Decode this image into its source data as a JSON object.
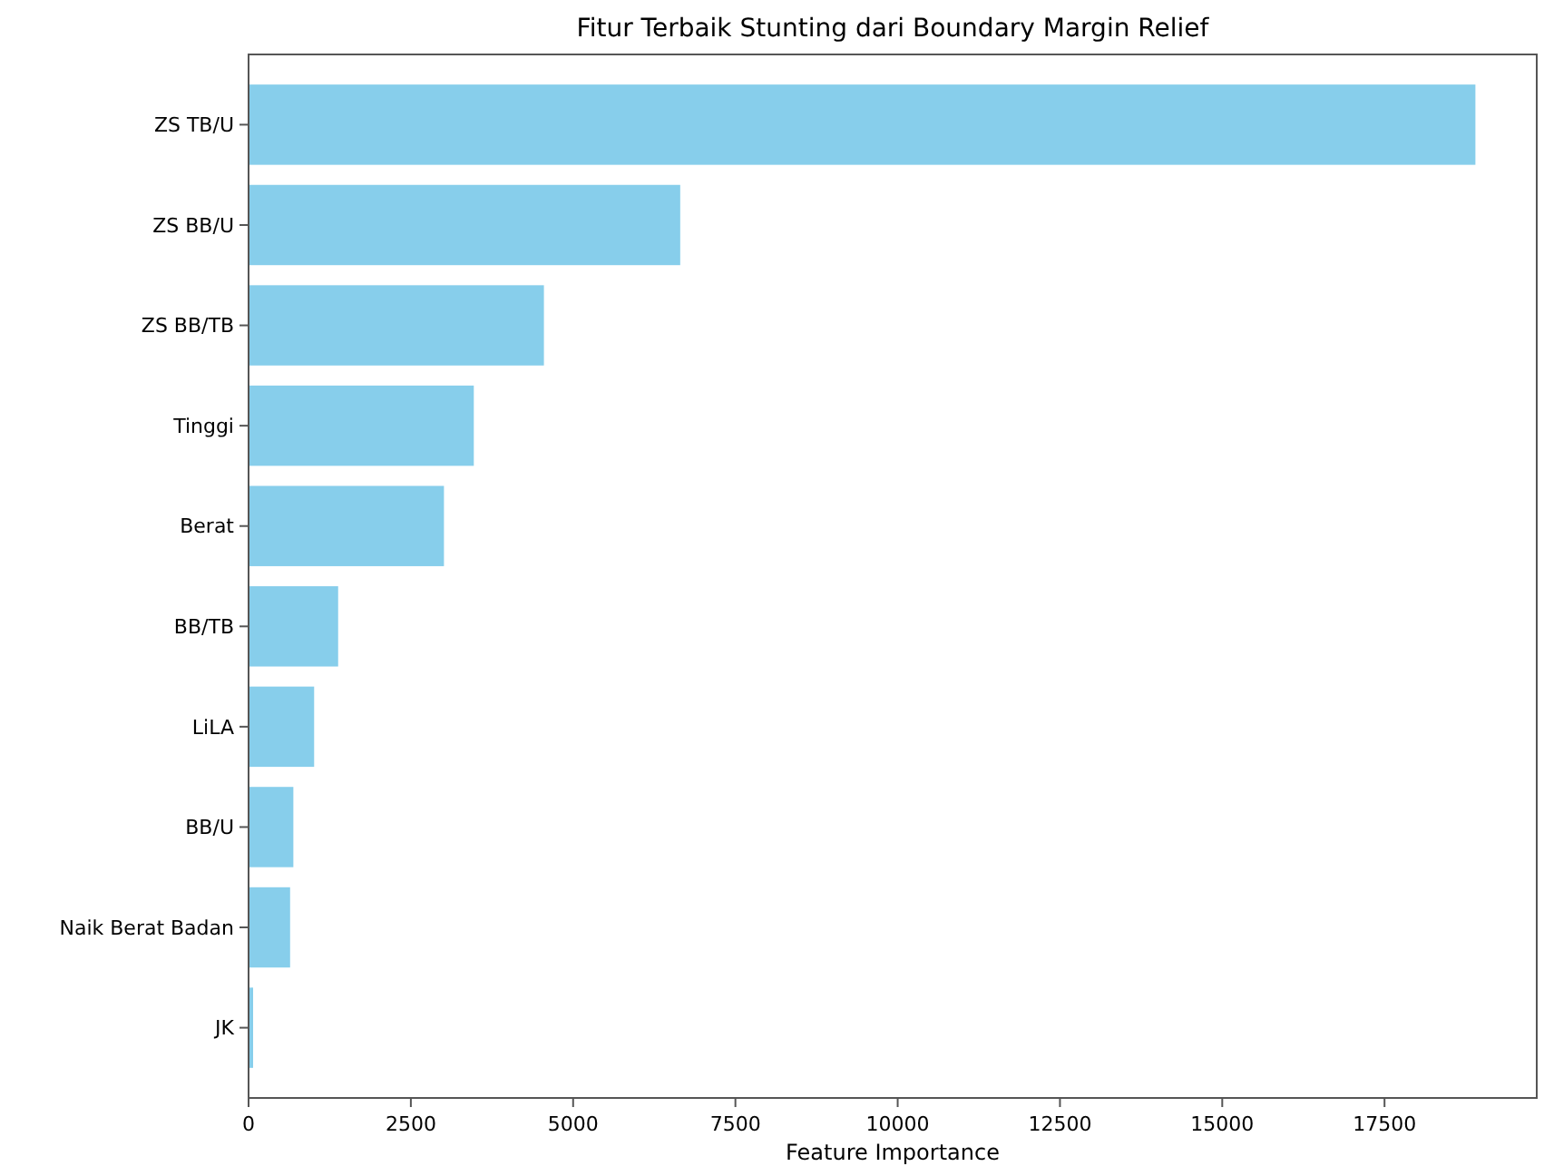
{
  "chart_data": {
    "type": "bar",
    "orientation": "horizontal",
    "title": "Fitur Terbaik Stunting dari Boundary Margin Relief",
    "xlabel": "Feature Importance",
    "categories": [
      "ZS TB/U",
      "ZS BB/U",
      "ZS BB/TB",
      "Tinggi",
      "Berat",
      "BB/TB",
      "LiLA",
      "BB/U",
      "Naik Berat Badan",
      "JK"
    ],
    "values": [
      18900,
      6650,
      4550,
      3470,
      3010,
      1380,
      1010,
      690,
      640,
      70
    ],
    "color": "#87ceeb",
    "xlim": [
      0,
      19845
    ],
    "xticks": [
      0,
      2500,
      5000,
      7500,
      10000,
      12500,
      15000,
      17500
    ],
    "grid": false
  }
}
